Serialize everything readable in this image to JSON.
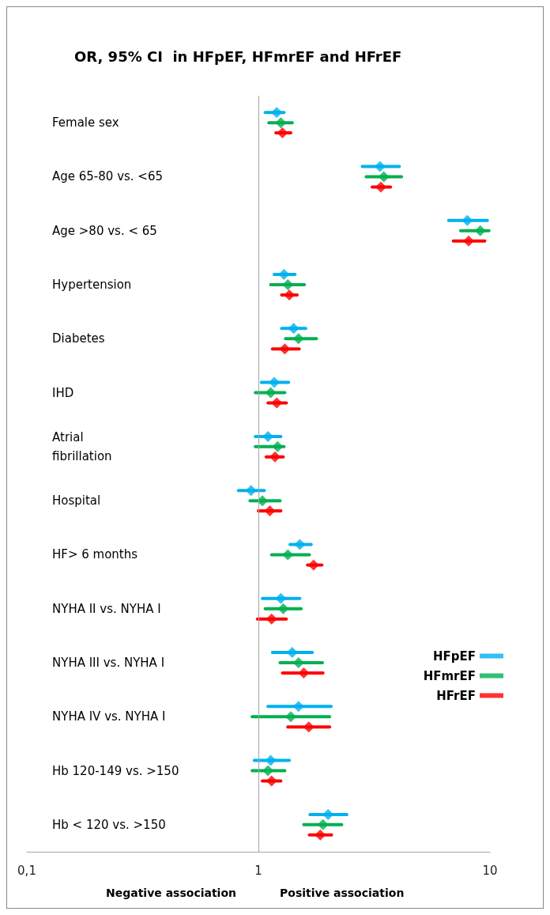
{
  "chart_data": {
    "type": "scatter",
    "orientation": "horizontal",
    "title": "OR, 95% CI  in HFpEF, HFmrEF and HFrEF",
    "categories": [
      "Female sex",
      "Age 65-80 vs. <65",
      "Age >80 vs. < 65",
      "Hypertension",
      "Diabetes",
      "IHD",
      "Atrial\nfibrillation",
      "Hospital",
      "HF> 6 months",
      "NYHA II vs. NYHA I",
      "NYHA III vs. NYHA I",
      "NYHA IV vs. NYHA I",
      "Hb 120-149 vs. >150",
      "Hb < 120 vs. >150"
    ],
    "series": [
      {
        "name": "HFpEF",
        "color": "#00b0f0",
        "values": [
          1.2,
          3.35,
          7.98,
          1.29,
          1.42,
          1.17,
          1.1,
          0.93,
          1.51,
          1.25,
          1.4,
          1.49,
          1.13,
          2.0
        ],
        "errors": [
          [
            1.07,
            1.29
          ],
          [
            2.81,
            4.06
          ],
          [
            6.63,
            9.75
          ],
          [
            1.17,
            1.44
          ],
          [
            1.26,
            1.6
          ],
          [
            1.03,
            1.35
          ],
          [
            0.97,
            1.25
          ],
          [
            0.82,
            1.06
          ],
          [
            1.37,
            1.69
          ],
          [
            1.04,
            1.51
          ],
          [
            1.15,
            1.71
          ],
          [
            1.1,
            2.06
          ],
          [
            0.96,
            1.36
          ],
          [
            1.67,
            2.41
          ]
        ]
      },
      {
        "name": "HFmrEF",
        "color": "#00b050",
        "values": [
          1.25,
          3.48,
          9.08,
          1.34,
          1.49,
          1.13,
          1.21,
          1.04,
          1.34,
          1.28,
          1.49,
          1.38,
          1.1,
          1.9
        ],
        "errors": [
          [
            1.11,
            1.4
          ],
          [
            2.92,
            4.15
          ],
          [
            7.47,
            9.9
          ],
          [
            1.13,
            1.58
          ],
          [
            1.31,
            1.78
          ],
          [
            0.97,
            1.3
          ],
          [
            0.97,
            1.29
          ],
          [
            0.92,
            1.24
          ],
          [
            1.14,
            1.66
          ],
          [
            1.07,
            1.53
          ],
          [
            1.24,
            1.89
          ],
          [
            0.94,
            2.03
          ],
          [
            0.94,
            1.3
          ],
          [
            1.57,
            2.29
          ]
        ]
      },
      {
        "name": "HFrEF",
        "color": "#ff0000",
        "values": [
          1.27,
          3.38,
          8.09,
          1.36,
          1.3,
          1.2,
          1.18,
          1.12,
          1.73,
          1.14,
          1.57,
          1.65,
          1.14,
          1.85
        ],
        "errors": [
          [
            1.19,
            1.38
          ],
          [
            3.1,
            3.72
          ],
          [
            6.95,
            9.5
          ],
          [
            1.26,
            1.47
          ],
          [
            1.15,
            1.5
          ],
          [
            1.1,
            1.32
          ],
          [
            1.08,
            1.28
          ],
          [
            1.0,
            1.25
          ],
          [
            1.63,
            1.88
          ],
          [
            0.99,
            1.32
          ],
          [
            1.27,
            1.9
          ],
          [
            1.34,
            2.03
          ],
          [
            1.04,
            1.25
          ],
          [
            1.66,
            2.07
          ]
        ]
      }
    ],
    "xlim": [
      0.1,
      10
    ],
    "xticks": [
      {
        "value": 0.1,
        "label": "0,1"
      },
      1,
      10
    ],
    "log": "x",
    "marker": "diamond",
    "legend": "right",
    "ref_lines": [
      {
        "axis": "x",
        "value": 1,
        "color": "#a6a6a6"
      }
    ],
    "annotations": [
      "Negative association",
      "Positive association"
    ]
  }
}
